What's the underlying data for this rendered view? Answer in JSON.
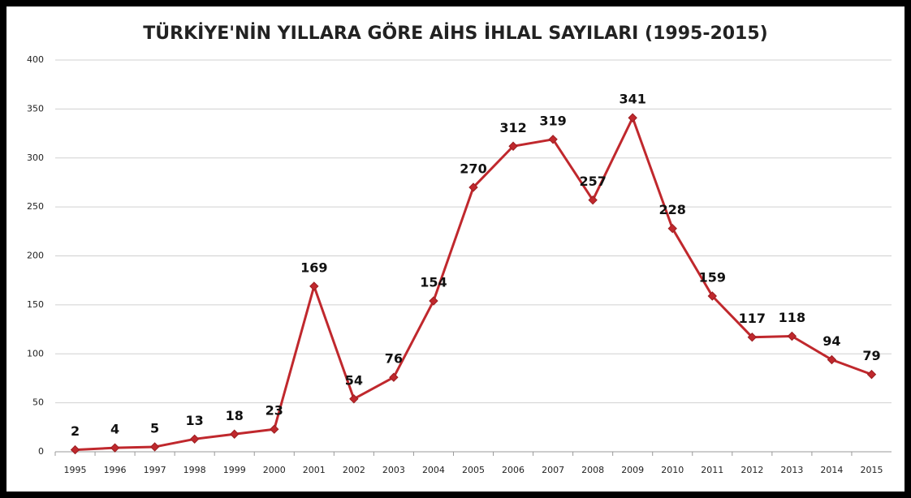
{
  "chart_data": {
    "type": "line",
    "title": "TÜRKİYE'NİN YILLARA GÖRE AİHS İHLAL SAYILARI (1995-2015)",
    "categories": [
      "1995",
      "1996",
      "1997",
      "1998",
      "1999",
      "2000",
      "2001",
      "2002",
      "2003",
      "2004",
      "2005",
      "2006",
      "2007",
      "2008",
      "2009",
      "2010",
      "2011",
      "2012",
      "2013",
      "2014",
      "2015"
    ],
    "values": [
      2,
      4,
      5,
      13,
      18,
      23,
      169,
      54,
      76,
      154,
      270,
      312,
      319,
      257,
      341,
      228,
      159,
      117,
      118,
      94,
      79
    ],
    "color": "#c0282d",
    "ylim": [
      0,
      400
    ],
    "yticks": [
      0,
      50,
      100,
      150,
      200,
      250,
      300,
      350,
      400
    ],
    "grid": true
  }
}
